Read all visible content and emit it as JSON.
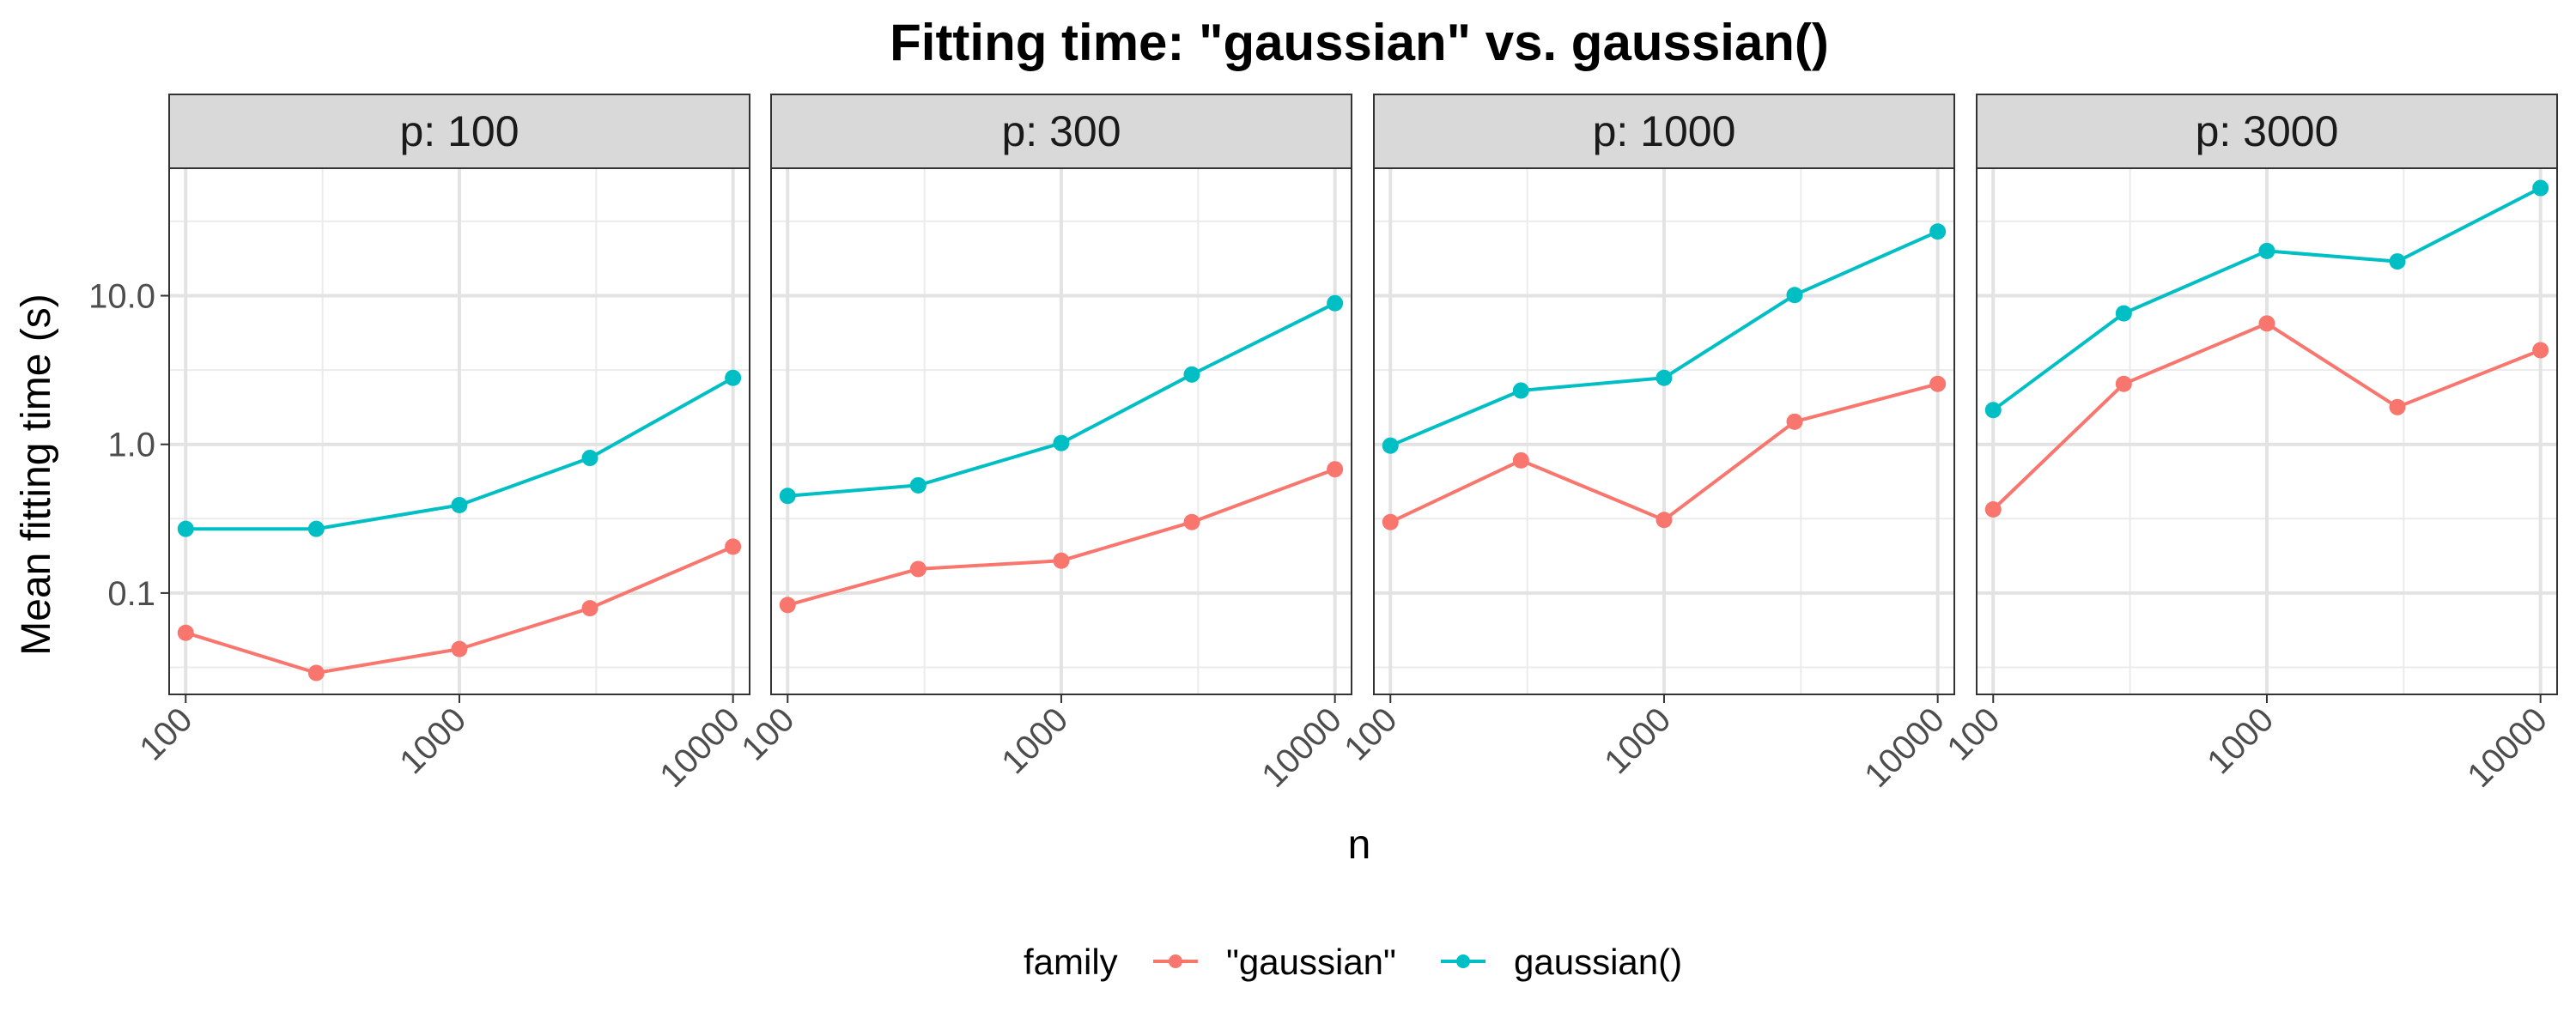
{
  "chart_data": {
    "type": "line",
    "title": "Fitting time: \"gaussian\" vs. gaussian()",
    "xlabel": "n",
    "ylabel": "Mean fitting time (s)",
    "x_scale": "log10",
    "y_scale": "log10",
    "x_ticks": [
      100,
      1000,
      10000
    ],
    "x_tick_labels": [
      "100",
      "1000",
      "10000"
    ],
    "y_ticks": [
      0.1,
      1.0,
      10.0
    ],
    "y_tick_labels": [
      "0.1",
      "1.0",
      "10.0"
    ],
    "xlim": [
      87,
      11500
    ],
    "ylim": [
      0.0208,
      72
    ],
    "grid": true,
    "legend_title": "family",
    "legend_position": "bottom",
    "series_names": [
      "\"gaussian\"",
      "gaussian()"
    ],
    "colors": {
      "\"gaussian\"": "#F8766D",
      "gaussian()": "#00BFC4"
    },
    "x": [
      100,
      300,
      1000,
      3000,
      10000
    ],
    "panels": [
      {
        "label": "p: 100",
        "series": [
          {
            "name": "\"gaussian\"",
            "values": [
              0.054,
              0.029,
              0.042,
              0.079,
              0.205
            ]
          },
          {
            "name": "gaussian()",
            "values": [
              0.27,
              0.27,
              0.39,
              0.81,
              2.8
            ]
          }
        ]
      },
      {
        "label": "p: 300",
        "series": [
          {
            "name": "\"gaussian\"",
            "values": [
              0.083,
              0.145,
              0.165,
              0.3,
              0.68
            ]
          },
          {
            "name": "gaussian()",
            "values": [
              0.45,
              0.53,
              1.02,
              2.95,
              8.9
            ]
          }
        ]
      },
      {
        "label": "p: 1000",
        "series": [
          {
            "name": "\"gaussian\"",
            "values": [
              0.3,
              0.78,
              0.31,
              1.42,
              2.55
            ]
          },
          {
            "name": "gaussian()",
            "values": [
              0.98,
              2.3,
              2.8,
              10.1,
              27
            ]
          }
        ]
      },
      {
        "label": "p: 3000",
        "series": [
          {
            "name": "\"gaussian\"",
            "values": [
              0.365,
              2.55,
              6.5,
              1.78,
              4.3
            ]
          },
          {
            "name": "gaussian()",
            "values": [
              1.7,
              7.6,
              20,
              17,
              53
            ]
          }
        ]
      }
    ]
  }
}
